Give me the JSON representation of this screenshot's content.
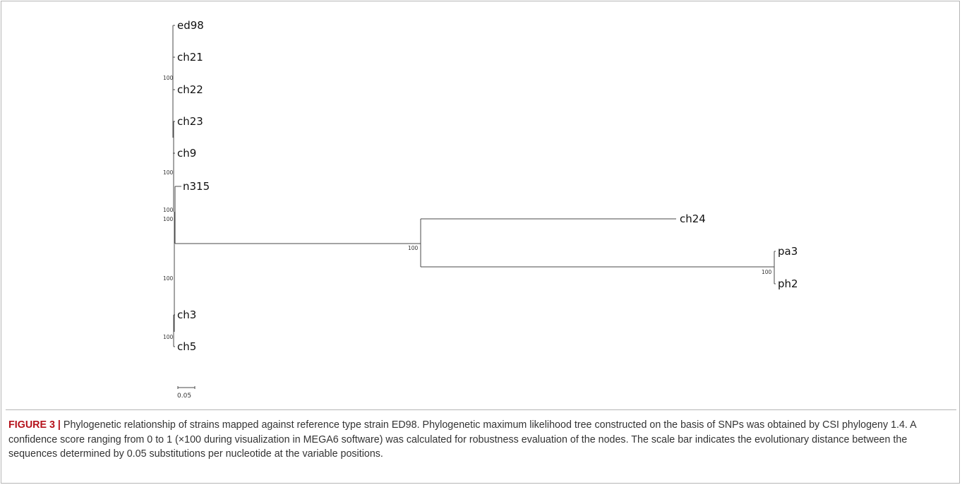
{
  "tree": {
    "leaves": [
      "ed98",
      "ch21",
      "ch22",
      "ch23",
      "ch9",
      "n315",
      "ch24",
      "pa3",
      "ph2",
      "ch3",
      "ch5"
    ],
    "bootstrap_values": [
      "100",
      "100",
      "100",
      "100",
      "100",
      "100",
      "100",
      "100"
    ],
    "scale_bar_label": "0.05"
  },
  "caption": {
    "figure_label": "FIGURE 3 |",
    "text": "Phylogenetic relationship of strains mapped against reference type strain ED98. Phylogenetic maximum likelihood tree constructed on the basis of SNPs was obtained by CSI phylogeny 1.4. A confidence score ranging from 0 to 1 (×100 during visualization in MEGA6 software) was calculated for robustness evaluation of the nodes. The scale bar indicates the evolutionary distance between the sequences determined by 0.05 substitutions per nucleotide at the variable positions."
  },
  "colors": {
    "figure_label": "#b5121b",
    "branch": "#4a4a4a",
    "text": "#333333",
    "border": "#b5b5b5"
  }
}
